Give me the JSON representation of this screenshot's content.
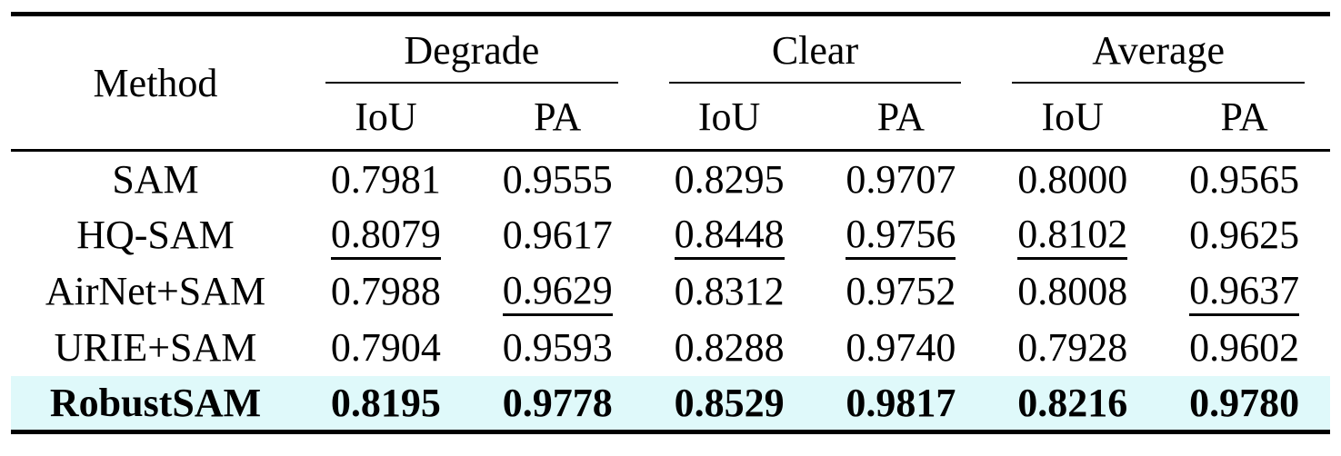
{
  "table": {
    "header": {
      "method_label": "Method",
      "groups": [
        {
          "label": "Degrade",
          "cols": [
            "IoU",
            "PA"
          ]
        },
        {
          "label": "Clear",
          "cols": [
            "IoU",
            "PA"
          ]
        },
        {
          "label": "Average",
          "cols": [
            "IoU",
            "PA"
          ]
        }
      ]
    },
    "rows": [
      {
        "method": "SAM",
        "bold": false,
        "highlight": false,
        "values": [
          {
            "v": "0.7981"
          },
          {
            "v": "0.9555"
          },
          {
            "v": "0.8295"
          },
          {
            "v": "0.9707"
          },
          {
            "v": "0.8000"
          },
          {
            "v": "0.9565"
          }
        ]
      },
      {
        "method": "HQ-SAM",
        "bold": false,
        "highlight": false,
        "values": [
          {
            "v": "0.8079",
            "u": true
          },
          {
            "v": "0.9617"
          },
          {
            "v": "0.8448",
            "u": true
          },
          {
            "v": "0.9756",
            "u": true
          },
          {
            "v": "0.8102",
            "u": true
          },
          {
            "v": "0.9625"
          }
        ]
      },
      {
        "method": "AirNet+SAM",
        "bold": false,
        "highlight": false,
        "values": [
          {
            "v": "0.7988"
          },
          {
            "v": "0.9629",
            "u": true
          },
          {
            "v": "0.8312"
          },
          {
            "v": "0.9752"
          },
          {
            "v": "0.8008"
          },
          {
            "v": "0.9637",
            "u": true
          }
        ]
      },
      {
        "method": "URIE+SAM",
        "bold": false,
        "highlight": false,
        "values": [
          {
            "v": "0.7904"
          },
          {
            "v": "0.9593"
          },
          {
            "v": "0.8288"
          },
          {
            "v": "0.9740"
          },
          {
            "v": "0.7928"
          },
          {
            "v": "0.9602"
          }
        ]
      },
      {
        "method": "RobustSAM",
        "bold": true,
        "highlight": true,
        "values": [
          {
            "v": "0.8195"
          },
          {
            "v": "0.9778"
          },
          {
            "v": "0.8529"
          },
          {
            "v": "0.9817"
          },
          {
            "v": "0.8216"
          },
          {
            "v": "0.9780"
          }
        ]
      }
    ],
    "colors": {
      "highlight_row": "#DFF9FA",
      "rule": "#000000",
      "text": "#000000",
      "background": "#FFFFFF"
    }
  }
}
